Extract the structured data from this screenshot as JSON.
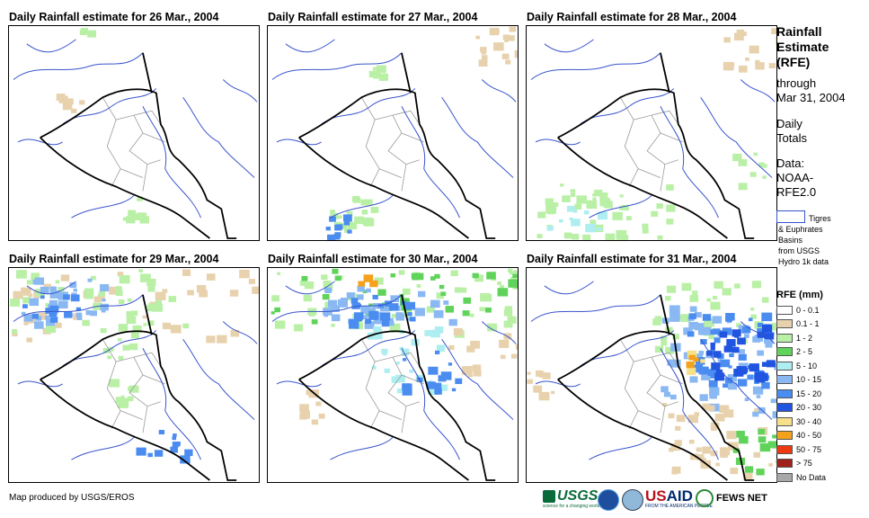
{
  "panels": [
    {
      "title": "Daily Rainfall estimate for 26 Mar., 2004"
    },
    {
      "title": "Daily Rainfall estimate for 27 Mar., 2004"
    },
    {
      "title": "Daily Rainfall estimate for 28 Mar., 2004"
    },
    {
      "title": "Daily Rainfall estimate for 29 Mar., 2004"
    },
    {
      "title": "Daily Rainfall estimate for 30 Mar., 2004"
    },
    {
      "title": "Daily Rainfall estimate for 31 Mar., 2004"
    }
  ],
  "sidebar": {
    "title_lines": [
      "Rainfall",
      "Estimate",
      "(RFE)"
    ],
    "through": "through",
    "date": "Mar 31, 2004",
    "daily": "Daily",
    "totals": "Totals",
    "data_label": "Data:",
    "data_source_1": "NOAA-",
    "data_source_2": "RFE2.0",
    "basin_1": "Tigres",
    "basin_2": "& Euphrates",
    "basin_3": "Basins",
    "basin_4": "from USGS",
    "basin_5": "Hydro 1k data",
    "legend_title": "RFE (mm)"
  },
  "legend": [
    {
      "label": "0 - 0.1",
      "color": "#ffffff"
    },
    {
      "label": "0.1 - 1",
      "color": "#e8d2ae"
    },
    {
      "label": "1 - 2",
      "color": "#b9f0a6"
    },
    {
      "label": "2 - 5",
      "color": "#5fd35a"
    },
    {
      "label": "5 - 10",
      "color": "#aeeef0"
    },
    {
      "label": "10 - 15",
      "color": "#8ab8f2"
    },
    {
      "label": "15 - 20",
      "color": "#4a8cf0"
    },
    {
      "label": "20 - 30",
      "color": "#1f55e0"
    },
    {
      "label": "30 - 40",
      "color": "#f7e08a"
    },
    {
      "label": "40 - 50",
      "color": "#f4a21e"
    },
    {
      "label": "50 - 75",
      "color": "#ee3a12"
    },
    {
      "label": "> 75",
      "color": "#a0201a"
    },
    {
      "label": "No Data",
      "color": "#a8a8a8"
    }
  ],
  "footer": {
    "credit": "Map produced by USGS/EROS"
  },
  "logos": {
    "usgs": "USGS",
    "usgs_tagline": "science for a changing world",
    "usaid_a": "US",
    "usaid_b": "AID",
    "usaid_tagline": "FROM THE AMERICAN PEOPLE",
    "fews": "FEWS NET"
  }
}
